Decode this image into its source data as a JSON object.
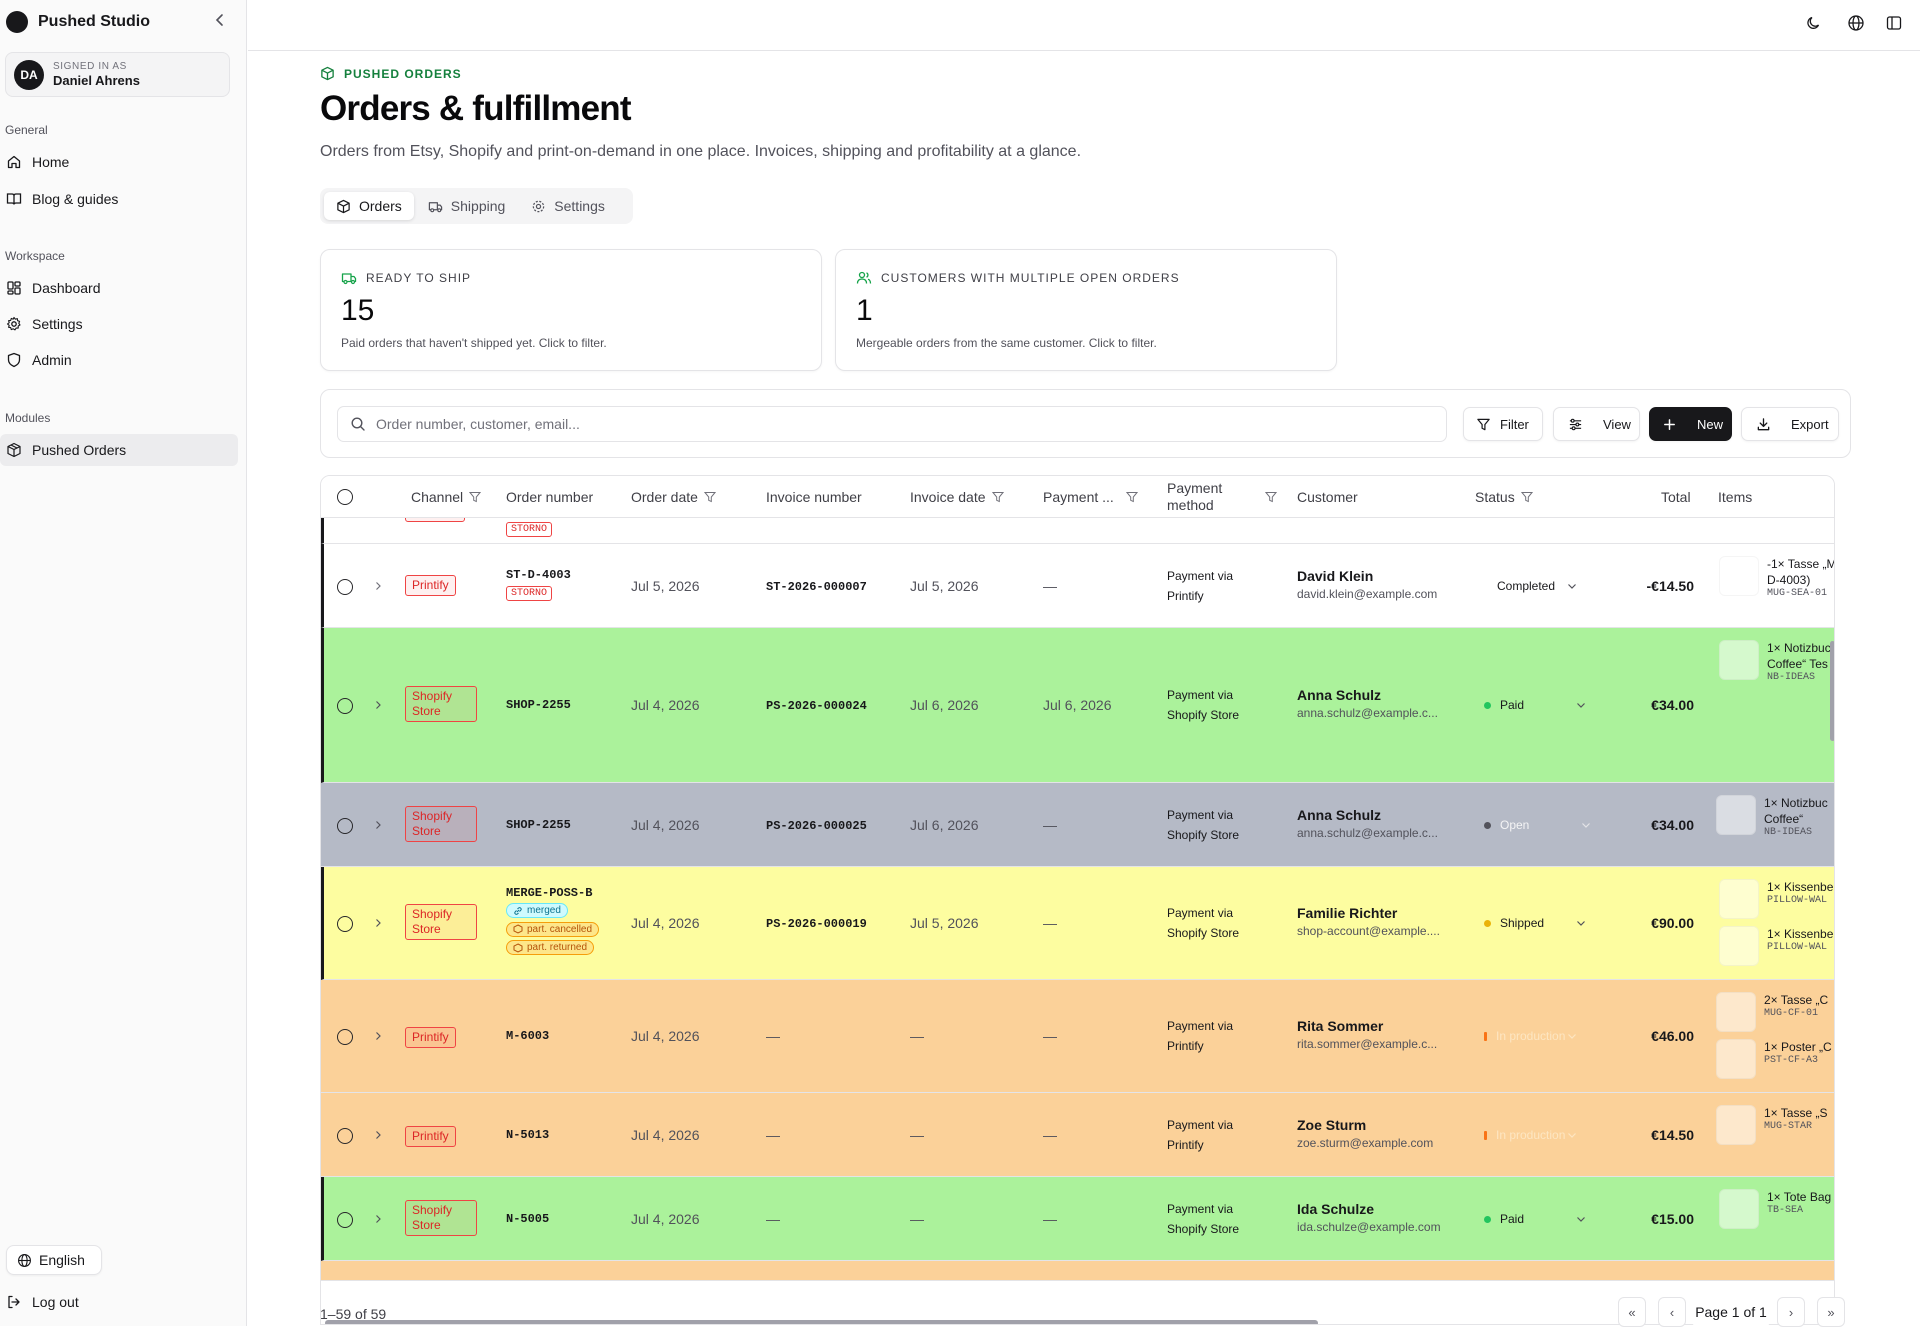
{
  "sidebar": {
    "brand": "Pushed Studio",
    "user": {
      "initials": "DA",
      "label": "SIGNED IN AS",
      "name": "Daniel Ahrens"
    },
    "sections": [
      {
        "title": "General",
        "items": [
          "Home",
          "Blog & guides"
        ]
      },
      {
        "title": "Workspace",
        "items": [
          "Dashboard",
          "Settings",
          "Admin"
        ]
      },
      {
        "title": "Modules",
        "items": [
          "Pushed Orders"
        ]
      }
    ],
    "language": "English",
    "logout": "Log out"
  },
  "header": {
    "eyebrow": "PUSHED ORDERS",
    "title": "Orders & fulfillment",
    "subtitle": "Orders from Etsy, Shopify and print-on-demand in one place. Invoices, shipping and profitability at a glance."
  },
  "tabs": [
    "Orders",
    "Shipping",
    "Settings"
  ],
  "cards": [
    {
      "label": "READY TO SHIP",
      "value": "15",
      "desc": "Paid orders that haven't shipped yet. Click to filter."
    },
    {
      "label": "CUSTOMERS WITH MULTIPLE OPEN ORDERS",
      "value": "1",
      "desc": "Mergeable orders from the same customer. Click to filter."
    }
  ],
  "toolbar": {
    "search_placeholder": "Order number, customer, email...",
    "filter": "Filter",
    "view": "View",
    "new": "New",
    "export": "Export"
  },
  "columns": [
    "Channel",
    "Order number",
    "Order date",
    "Invoice number",
    "Invoice date",
    "Payment ...",
    "Payment method",
    "Customer",
    "Status",
    "Total",
    "Items"
  ],
  "colors": {
    "green": "#abf29b",
    "gray": "#b5bac6",
    "yellow": "#fdfda0",
    "orange": "#fbd199",
    "accent": "#18181b",
    "channel": "#dc2626"
  },
  "rows": [
    {
      "channel": "Printify",
      "order": "ST-D-4003",
      "badges": [
        {
          "type": "storno",
          "text": "STORNO"
        }
      ],
      "order_date": "Jul 5, 2026",
      "invoice": "ST-2026-000007",
      "invoice_date": "Jul 5, 2026",
      "payment_date": "—",
      "pm1": "Payment via",
      "pm2": "Printify",
      "name": "David Klein",
      "email": "david.klein@example.com",
      "status": "Completed",
      "status_dot": "",
      "total": "-€14.50",
      "bg": "white",
      "items": [
        {
          "t1": "-1× Tasse „M",
          "t1b": "D-4003)",
          "t2": "MUG-SEA-01"
        }
      ]
    },
    {
      "channel": "Shopify Store",
      "order": "SHOP-2255",
      "badges": [],
      "order_date": "Jul 4, 2026",
      "invoice": "PS-2026-000024",
      "invoice_date": "Jul 6, 2026",
      "payment_date": "Jul 6, 2026",
      "pm1": "Payment via",
      "pm2": "Shopify Store",
      "name": "Anna Schulz",
      "email": "anna.schulz@example.c...",
      "status": "Paid",
      "status_dot": "#22c55e",
      "total": "€34.00",
      "bg": "green",
      "items": [
        {
          "t1": "1× Notizbuc",
          "t1b": "Coffee“ Tes",
          "t2": "NB-IDEAS"
        }
      ]
    },
    {
      "channel": "Shopify Store",
      "order": "SHOP-2255",
      "badges": [],
      "order_date": "Jul 4, 2026",
      "invoice": "PS-2026-000025",
      "invoice_date": "Jul 6, 2026",
      "payment_date": "—",
      "pm1": "Payment via",
      "pm2": "Shopify Store",
      "name": "Anna Schulz",
      "email": "anna.schulz@example.c...",
      "status": "Open",
      "status_dot": "#52525b",
      "total": "€34.00",
      "bg": "gray",
      "items": [
        {
          "t1": "1× Notizbuc",
          "t1b": "Coffee“",
          "t2": "NB-IDEAS"
        }
      ]
    },
    {
      "channel": "Shopify Store",
      "order": "MERGE-POSS-B",
      "badges": [
        {
          "type": "merged",
          "text": "merged"
        },
        {
          "type": "cancel",
          "text": "part. cancelled"
        },
        {
          "type": "return",
          "text": "part. returned"
        }
      ],
      "order_date": "Jul 4, 2026",
      "invoice": "PS-2026-000019",
      "invoice_date": "Jul 5, 2026",
      "payment_date": "—",
      "pm1": "Payment via",
      "pm2": "Shopify Store",
      "name": "Familie Richter",
      "email": "shop-account@example....",
      "status": "Shipped",
      "status_dot": "#eab308",
      "total": "€90.00",
      "bg": "yellow",
      "items": [
        {
          "t1": "1× Kissenbe",
          "t1b": "",
          "t2": "PILLOW-WAL"
        },
        {
          "t1": "1× Kissenbe",
          "t1b": "",
          "t2": "PILLOW-WAL"
        }
      ]
    },
    {
      "channel": "Printify",
      "order": "M-6003",
      "badges": [],
      "order_date": "Jul 4, 2026",
      "invoice": "—",
      "invoice_date": "—",
      "payment_date": "—",
      "pm1": "Payment via",
      "pm2": "Printify",
      "name": "Rita Sommer",
      "email": "rita.sommer@example.c...",
      "status": "In production",
      "status_dot": "#f97316",
      "total": "€46.00",
      "bg": "orange",
      "items": [
        {
          "t1": "2× Tasse „C",
          "t1b": "",
          "t2": "MUG-CF-01"
        },
        {
          "t1": "1× Poster „C",
          "t1b": "",
          "t2": "PST-CF-A3"
        }
      ]
    },
    {
      "channel": "Printify",
      "order": "N-5013",
      "badges": [],
      "order_date": "Jul 4, 2026",
      "invoice": "—",
      "invoice_date": "—",
      "payment_date": "—",
      "pm1": "Payment via",
      "pm2": "Printify",
      "name": "Zoe Sturm",
      "email": "zoe.sturm@example.com",
      "status": "In production",
      "status_dot": "#f97316",
      "total": "€14.50",
      "bg": "orange",
      "items": [
        {
          "t1": "1× Tasse „S",
          "t1b": "",
          "t2": "MUG-STAR"
        }
      ]
    },
    {
      "channel": "Shopify Store",
      "order": "N-5005",
      "badges": [],
      "order_date": "Jul 4, 2026",
      "invoice": "—",
      "invoice_date": "—",
      "payment_date": "—",
      "pm1": "Payment via",
      "pm2": "Shopify Store",
      "name": "Ida Schulze",
      "email": "ida.schulze@example.com",
      "status": "Paid",
      "status_dot": "#22c55e",
      "total": "€15.00",
      "bg": "green",
      "items": [
        {
          "t1": "1× Tote Bag",
          "t1b": "",
          "t2": "TB-SEA"
        }
      ]
    }
  ],
  "partial_top": {
    "badge": "STORNO"
  },
  "footer": {
    "range": "1–59 of 59",
    "page": "Page 1 of 1",
    "first": "«",
    "prev": "‹",
    "next": "›",
    "last": "»"
  }
}
